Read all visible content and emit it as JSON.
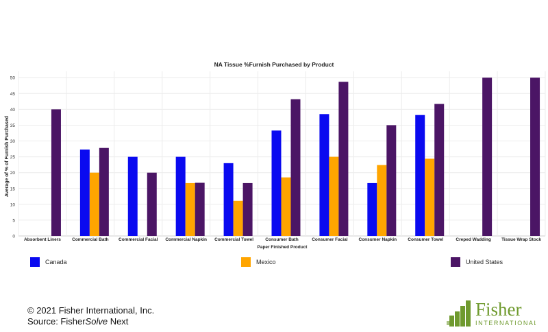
{
  "chart_data": {
    "type": "bar",
    "title": "NA Tissue %Furnish Purchased by Product",
    "xlabel": "Paper Finished Product",
    "ylabel": "Average of % of Furnish Purchased",
    "ylim": [
      0,
      52
    ],
    "yticks": [
      0,
      5,
      10,
      15,
      20,
      25,
      30,
      35,
      40,
      45,
      50
    ],
    "grid": true,
    "legend_position": "bottom",
    "categories": [
      "Absorbent Liners",
      "Commercial Bath",
      "Commercial Facial",
      "Commercial Napkin",
      "Commercial Towel",
      "Consumer Bath",
      "Consumer Facial",
      "Consumer Napkin",
      "Consumer Towel",
      "Creped Wadding",
      "Tissue Wrap Stock"
    ],
    "series": [
      {
        "name": "Canada",
        "color": "#0a0af0",
        "values": [
          null,
          27.3,
          25,
          25,
          23,
          33.3,
          38.5,
          16.7,
          38.2,
          null,
          null
        ]
      },
      {
        "name": "Mexico",
        "color": "#ffa500",
        "values": [
          null,
          20,
          null,
          16.7,
          11.1,
          18.5,
          25,
          22.4,
          24.4,
          null,
          null
        ]
      },
      {
        "name": "United States",
        "color": "#4b1565",
        "values": [
          40,
          27.8,
          20,
          16.8,
          16.7,
          43.2,
          48.7,
          35,
          41.7,
          50,
          50
        ]
      }
    ]
  },
  "footer": {
    "copyright": "© 2021 Fisher International, Inc.",
    "source_prefix": "Source: Fisher",
    "source_italic": "Solve",
    "source_suffix": " Next"
  },
  "logo": {
    "name": "Fisher",
    "tagline": "INTERNATIONAL",
    "color": "#6f9a2e"
  }
}
